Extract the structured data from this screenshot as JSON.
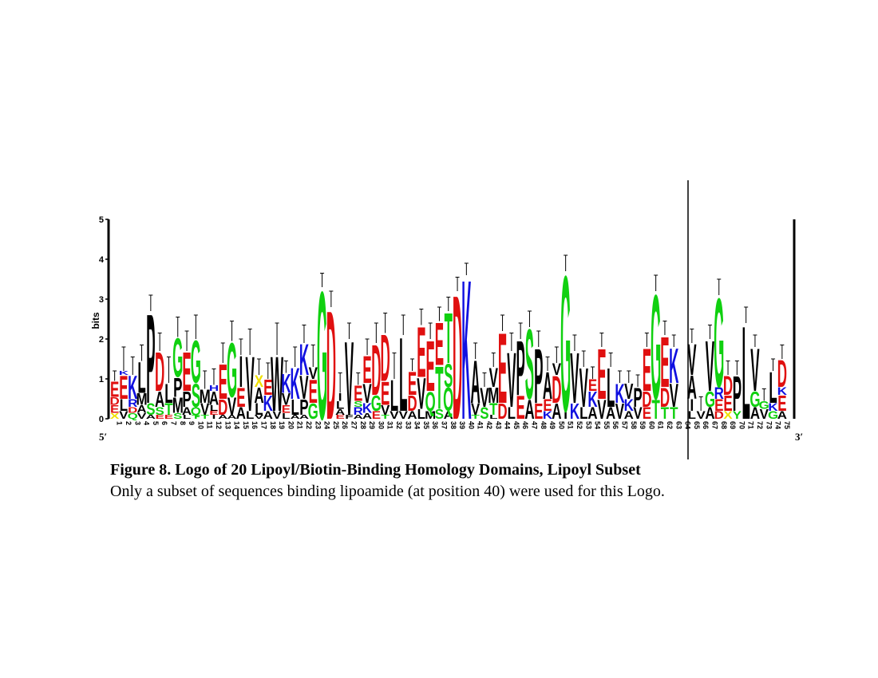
{
  "chart_data": {
    "type": "sequence-logo",
    "ylabel": "bits",
    "ylim": [
      0,
      5
    ],
    "yticks": [
      "0",
      "1",
      "2",
      "3",
      "4",
      "5"
    ],
    "end_labels": {
      "left": "5′",
      "right": "3′"
    },
    "colors": {
      "acidic": "#e01010",
      "polar": "#10d010",
      "basic": "#1010e0",
      "hydrophobic": "#000000",
      "other": "#f0e000"
    },
    "positions": [
      {
        "n": "1",
        "stack": [
          [
            "X",
            0.15
          ],
          [
            "E",
            0.2
          ],
          [
            "D",
            0.2
          ],
          [
            "E",
            0.4
          ]
        ],
        "err": 0.5
      },
      {
        "n": "2",
        "stack": [
          [
            "V",
            0.2
          ],
          [
            "L",
            0.3
          ],
          [
            "E",
            0.6
          ],
          [
            "K",
            0.1
          ]
        ],
        "err": 1.2
      },
      {
        "n": "3",
        "stack": [
          [
            "Q",
            0.15
          ],
          [
            "D",
            0.15
          ],
          [
            "R",
            0.2
          ],
          [
            "K",
            0.6
          ]
        ],
        "err": 0.9
      },
      {
        "n": "4",
        "stack": [
          [
            "V",
            0.15
          ],
          [
            "A",
            0.2
          ],
          [
            "M",
            0.3
          ],
          [
            "L",
            0.8
          ]
        ],
        "err": 0.8
      },
      {
        "n": "5",
        "stack": [
          [
            "A",
            0.1
          ],
          [
            "S",
            0.3
          ],
          [
            "P",
            2.3
          ]
        ],
        "err": 0.8
      },
      {
        "n": "6",
        "stack": [
          [
            "E",
            0.1
          ],
          [
            "S",
            0.2
          ],
          [
            "A",
            0.4
          ],
          [
            "D",
            1.0
          ]
        ],
        "err": 0.9
      },
      {
        "n": "7",
        "stack": [
          [
            "E",
            0.1
          ],
          [
            "T",
            0.3
          ],
          [
            "L",
            0.5
          ]
        ],
        "err": 1.3
      },
      {
        "n": "8",
        "stack": [
          [
            "S",
            0.15
          ],
          [
            "M",
            0.4
          ],
          [
            "P",
            0.5
          ],
          [
            "G",
            1.0
          ]
        ],
        "err": 1.0
      },
      {
        "n": "9",
        "stack": [
          [
            "L",
            0.1
          ],
          [
            "A",
            0.2
          ],
          [
            "P",
            0.4
          ],
          [
            "E",
            1.0
          ]
        ],
        "err": 1.0
      },
      {
        "n": "10",
        "stack": [
          [
            "T",
            0.1
          ],
          [
            "Q",
            0.2
          ],
          [
            "S",
            0.6
          ],
          [
            "G",
            1.1
          ]
        ],
        "err": 1.2
      },
      {
        "n": "11",
        "stack": [
          [
            "T",
            0.1
          ],
          [
            "V",
            0.3
          ],
          [
            "M",
            0.35
          ]
        ],
        "err": 0.9
      },
      {
        "n": "12",
        "stack": [
          [
            "I",
            0.1
          ],
          [
            "E",
            0.1
          ],
          [
            "L",
            0.15
          ],
          [
            "A",
            0.35
          ],
          [
            "H",
            0.15
          ]
        ],
        "err": 0.8
      },
      {
        "n": "13",
        "stack": [
          [
            "A",
            0.1
          ],
          [
            "D",
            0.4
          ],
          [
            "E",
            0.9
          ]
        ],
        "err": 1.0
      },
      {
        "n": "14",
        "stack": [
          [
            "A",
            0.1
          ],
          [
            "V",
            0.45
          ],
          [
            "G",
            1.4
          ]
        ],
        "err": 1.0
      },
      {
        "n": "15",
        "stack": [
          [
            "A",
            0.3
          ],
          [
            "E",
            0.5
          ],
          [
            "I",
            0.8
          ]
        ],
        "err": 0.8
      },
      {
        "n": "16",
        "stack": [
          [
            "L",
            0.2
          ],
          [
            "V",
            1.4
          ]
        ],
        "err": 1.3
      },
      {
        "n": "17",
        "stack": [
          [
            "V",
            0.1
          ],
          [
            "L",
            0.3
          ],
          [
            "A",
            0.4
          ],
          [
            "X",
            0.3
          ]
        ],
        "err": 0.8
      },
      {
        "n": "18",
        "stack": [
          [
            "A",
            0.2
          ],
          [
            "K",
            0.4
          ],
          [
            "E",
            0.4
          ]
        ],
        "err": 0.8
      },
      {
        "n": "19",
        "stack": [
          [
            "V",
            0.2
          ],
          [
            "W",
            1.4
          ]
        ],
        "err": 1.6
      },
      {
        "n": "20",
        "stack": [
          [
            "L",
            0.15
          ],
          [
            "E",
            0.2
          ],
          [
            "V",
            0.3
          ],
          [
            "K",
            0.5
          ]
        ],
        "err": 0.6
      },
      {
        "n": "21",
        "stack": [
          [
            "A",
            0.1
          ],
          [
            "L",
            0.4
          ],
          [
            "K",
            0.8
          ]
        ],
        "err": 1.0
      },
      {
        "n": "22",
        "stack": [
          [
            "A",
            0.1
          ],
          [
            "P",
            0.4
          ],
          [
            "V",
            0.6
          ],
          [
            "K",
            0.8
          ]
        ],
        "err": 0.9
      },
      {
        "n": "23",
        "stack": [
          [
            "G",
            0.4
          ],
          [
            "E",
            0.6
          ],
          [
            "V",
            0.3
          ]
        ],
        "err": 1.1
      },
      {
        "n": "24",
        "stack": [
          [
            "G",
            3.3
          ]
        ],
        "err": 0.7
      },
      {
        "n": "25",
        "stack": [
          [
            "D",
            2.8
          ]
        ],
        "err": 0.8
      },
      {
        "n": "26",
        "stack": [
          [
            "E",
            0.1
          ],
          [
            "A",
            0.15
          ],
          [
            "L",
            0.2
          ],
          [
            "I",
            0.2
          ]
        ],
        "err": 1.0
      },
      {
        "n": "27",
        "stack": [
          [
            "F",
            0.1
          ],
          [
            "V",
            1.9
          ]
        ],
        "err": 0.8
      },
      {
        "n": "28",
        "stack": [
          [
            "A",
            0.1
          ],
          [
            "R",
            0.2
          ],
          [
            "S",
            0.15
          ],
          [
            "E",
            0.4
          ]
        ],
        "err": 0.6
      },
      {
        "n": "29",
        "stack": [
          [
            "A",
            0.15
          ],
          [
            "K",
            0.25
          ],
          [
            "V",
            0.5
          ],
          [
            "E",
            0.7
          ]
        ],
        "err": 0.8
      },
      {
        "n": "30",
        "stack": [
          [
            "E",
            0.2
          ],
          [
            "G",
            0.4
          ],
          [
            "D",
            1.3
          ]
        ],
        "err": 1.0
      },
      {
        "n": "31",
        "stack": [
          [
            "T",
            0.1
          ],
          [
            "V",
            0.25
          ],
          [
            "E",
            0.6
          ],
          [
            "D",
            1.2
          ]
        ],
        "err": 1.0
      },
      {
        "n": "32",
        "stack": [
          [
            "V",
            0.2
          ],
          [
            "L",
            0.8
          ]
        ],
        "err": 1.3
      },
      {
        "n": "33",
        "stack": [
          [
            "V",
            0.2
          ],
          [
            "L",
            1.9
          ]
        ],
        "err": 1.0
      },
      {
        "n": "34",
        "stack": [
          [
            "A",
            0.2
          ],
          [
            "D",
            0.4
          ],
          [
            "E",
            0.6
          ]
        ],
        "err": 0.6
      },
      {
        "n": "35",
        "stack": [
          [
            "L",
            0.25
          ],
          [
            "V",
            0.8
          ],
          [
            "E",
            1.3
          ]
        ],
        "err": 0.8
      },
      {
        "n": "36",
        "stack": [
          [
            "M",
            0.2
          ],
          [
            "Q",
            0.5
          ],
          [
            "E",
            1.3
          ]
        ],
        "err": 0.8
      },
      {
        "n": "37",
        "stack": [
          [
            "S",
            0.25
          ],
          [
            "T",
            1.1
          ],
          [
            "E",
            1.1
          ]
        ],
        "err": 0.7
      },
      {
        "n": "38",
        "stack": [
          [
            "A",
            0.2
          ],
          [
            "Q",
            0.6
          ],
          [
            "S",
            0.6
          ],
          [
            "T",
            1.3
          ]
        ],
        "err": 0.7
      },
      {
        "n": "39",
        "stack": [
          [
            "D",
            3.2
          ]
        ],
        "err": 0.7
      },
      {
        "n": "40",
        "stack": [
          [
            "K",
            3.6
          ]
        ],
        "err": 0.6
      },
      {
        "n": "41",
        "stack": [
          [
            "T",
            0.1
          ],
          [
            "V",
            0.3
          ],
          [
            "A",
            1.1
          ]
        ],
        "err": 0.8
      },
      {
        "n": "42",
        "stack": [
          [
            "S",
            0.3
          ],
          [
            "V",
            0.5
          ]
        ],
        "err": 0.7
      },
      {
        "n": "43",
        "stack": [
          [
            "L",
            0.1
          ],
          [
            "T",
            0.3
          ],
          [
            "M",
            0.4
          ],
          [
            "V",
            0.5
          ]
        ],
        "err": 0.7
      },
      {
        "n": "44",
        "stack": [
          [
            "D",
            0.4
          ],
          [
            "E",
            1.8
          ]
        ],
        "err": 0.8
      },
      {
        "n": "45",
        "stack": [
          [
            "L",
            0.3
          ],
          [
            "V",
            1.4
          ]
        ],
        "err": 0.9
      },
      {
        "n": "46",
        "stack": [
          [
            "E",
            0.6
          ],
          [
            "P",
            1.4
          ]
        ],
        "err": 0.8
      },
      {
        "n": "47",
        "stack": [
          [
            "A",
            0.5
          ],
          [
            "S",
            1.8
          ]
        ],
        "err": 0.8
      },
      {
        "n": "48",
        "stack": [
          [
            "E",
            0.4
          ],
          [
            "P",
            1.4
          ]
        ],
        "err": 0.8
      },
      {
        "n": "49",
        "stack": [
          [
            "K",
            0.2
          ],
          [
            "E",
            0.3
          ],
          [
            "A",
            0.7
          ]
        ],
        "err": 0.7
      },
      {
        "n": "50",
        "stack": [
          [
            "A",
            0.4
          ],
          [
            "D",
            0.7
          ],
          [
            "V",
            0.3
          ]
        ],
        "err": 0.8
      },
      {
        "n": "51",
        "stack": [
          [
            "I",
            0.2
          ],
          [
            "G",
            3.5
          ]
        ],
        "err": 0.8
      },
      {
        "n": "52",
        "stack": [
          [
            "K",
            0.4
          ],
          [
            "V",
            1.3
          ]
        ],
        "err": 0.8
      },
      {
        "n": "53",
        "stack": [
          [
            "L",
            0.3
          ],
          [
            "V",
            1.0
          ]
        ],
        "err": 0.8
      },
      {
        "n": "54",
        "stack": [
          [
            "A",
            0.3
          ],
          [
            "K",
            0.4
          ],
          [
            "E",
            0.3
          ]
        ],
        "err": 0.6
      },
      {
        "n": "55",
        "stack": [
          [
            "V",
            0.5
          ],
          [
            "E",
            1.3
          ]
        ],
        "err": 0.7
      },
      {
        "n": "56",
        "stack": [
          [
            "A",
            0.3
          ],
          [
            "L",
            1.0
          ]
        ],
        "err": 0.7
      },
      {
        "n": "57",
        "stack": [
          [
            "V",
            0.4
          ],
          [
            "K",
            0.5
          ]
        ],
        "err": 0.6
      },
      {
        "n": "58",
        "stack": [
          [
            "A",
            0.2
          ],
          [
            "K",
            0.3
          ],
          [
            "V",
            0.4
          ]
        ],
        "err": 0.6
      },
      {
        "n": "59",
        "stack": [
          [
            "V",
            0.3
          ],
          [
            "P",
            0.5
          ]
        ],
        "err": 0.6
      },
      {
        "n": "60",
        "stack": [
          [
            "E",
            0.3
          ],
          [
            "D",
            0.4
          ],
          [
            "E",
            1.1
          ]
        ],
        "err": 0.7
      },
      {
        "n": "61",
        "stack": [
          [
            "T",
            0.5
          ],
          [
            "G",
            2.7
          ]
        ],
        "err": 0.8
      },
      {
        "n": "62",
        "stack": [
          [
            "T",
            0.3
          ],
          [
            "D",
            0.5
          ],
          [
            "E",
            1.3
          ]
        ],
        "err": 0.7
      },
      {
        "n": "63",
        "stack": [
          [
            "T",
            0.3
          ],
          [
            "V",
            0.6
          ],
          [
            "K",
            0.9
          ]
        ],
        "err": 0.6
      },
      {
        "n": "64",
        "stack": [],
        "err": 0
      },
      {
        "n": "65",
        "stack": [
          [
            "L",
            0.2
          ],
          [
            "I",
            0.3
          ],
          [
            "A",
            0.6
          ],
          [
            "V",
            0.8
          ]
        ],
        "err": 0.7
      },
      {
        "n": "66",
        "stack": [
          [
            "V",
            0.2
          ]
        ],
        "err": 0.7
      },
      {
        "n": "67",
        "stack": [
          [
            "A",
            0.3
          ],
          [
            "G",
            0.4
          ],
          [
            "V",
            1.3
          ]
        ],
        "err": 0.7
      },
      {
        "n": "68",
        "stack": [
          [
            "D",
            0.2
          ],
          [
            "E",
            0.3
          ],
          [
            "R",
            0.3
          ],
          [
            "G",
            2.3
          ]
        ],
        "err": 0.8
      },
      {
        "n": "69",
        "stack": [
          [
            "X",
            0.2
          ],
          [
            "E",
            0.4
          ],
          [
            "D",
            0.5
          ]
        ],
        "err": 0.7
      },
      {
        "n": "70",
        "stack": [
          [
            "Y",
            0.2
          ],
          [
            "P",
            0.9
          ]
        ],
        "err": 0.7
      },
      {
        "n": "71",
        "stack": [
          [
            "L",
            2.4
          ]
        ],
        "err": 0.8
      },
      {
        "n": "72",
        "stack": [
          [
            "A",
            0.3
          ],
          [
            "G",
            0.4
          ],
          [
            "V",
            1.1
          ]
        ],
        "err": 0.6
      },
      {
        "n": "73",
        "stack": [
          [
            "V",
            0.25
          ],
          [
            "G",
            0.2
          ]
        ],
        "err": 0.6
      },
      {
        "n": "74",
        "stack": [
          [
            "G",
            0.2
          ],
          [
            "K",
            0.2
          ],
          [
            "L",
            0.8
          ]
        ],
        "err": 0.6
      },
      {
        "n": "75",
        "stack": [
          [
            "A",
            0.2
          ],
          [
            "E",
            0.4
          ],
          [
            "K",
            0.2
          ],
          [
            "D",
            0.7
          ]
        ],
        "err": 0.7
      }
    ]
  },
  "caption": {
    "title": "Figure 8. Logo of 20 Lipoyl/Biotin-Binding Homology Domains, Lipoyl Subset",
    "text": "Only a subset of sequences binding lipoamide (at position 40) were used for this Logo."
  }
}
